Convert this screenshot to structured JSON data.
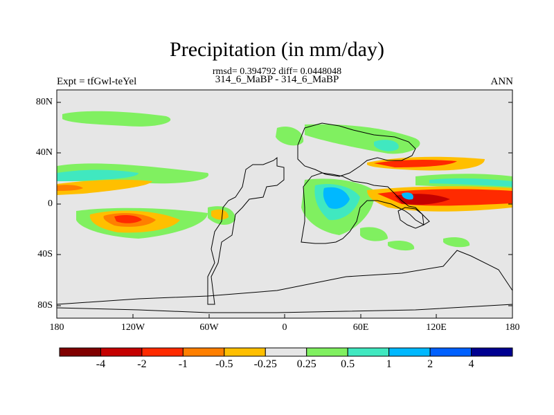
{
  "title": "Precipitation (in mm/day)",
  "stats": "rmsd= 0.394792 diff= 0.0448048",
  "case": "314_6_MaBP - 314_6_MaBP",
  "left_label": "Expt = tfGwl-teYel",
  "right_label": "ANN",
  "lat_labels": [
    "80N",
    "40N",
    "0",
    "40S",
    "80S"
  ],
  "lon_labels": [
    "180",
    "120W",
    "60W",
    "0",
    "60E",
    "120E",
    "180"
  ],
  "colorbar": {
    "colors": [
      "#800000",
      "#c40000",
      "#ff2a00",
      "#ff7f00",
      "#ffbf00",
      "#e6e6e6",
      "#80f060",
      "#40e8c0",
      "#00b8ff",
      "#0060ff",
      "#000090"
    ],
    "labels": [
      "-4",
      "-2",
      "-1",
      "-0.5",
      "-0.25",
      "0.25",
      "0.5",
      "1",
      "2",
      "4"
    ]
  }
}
